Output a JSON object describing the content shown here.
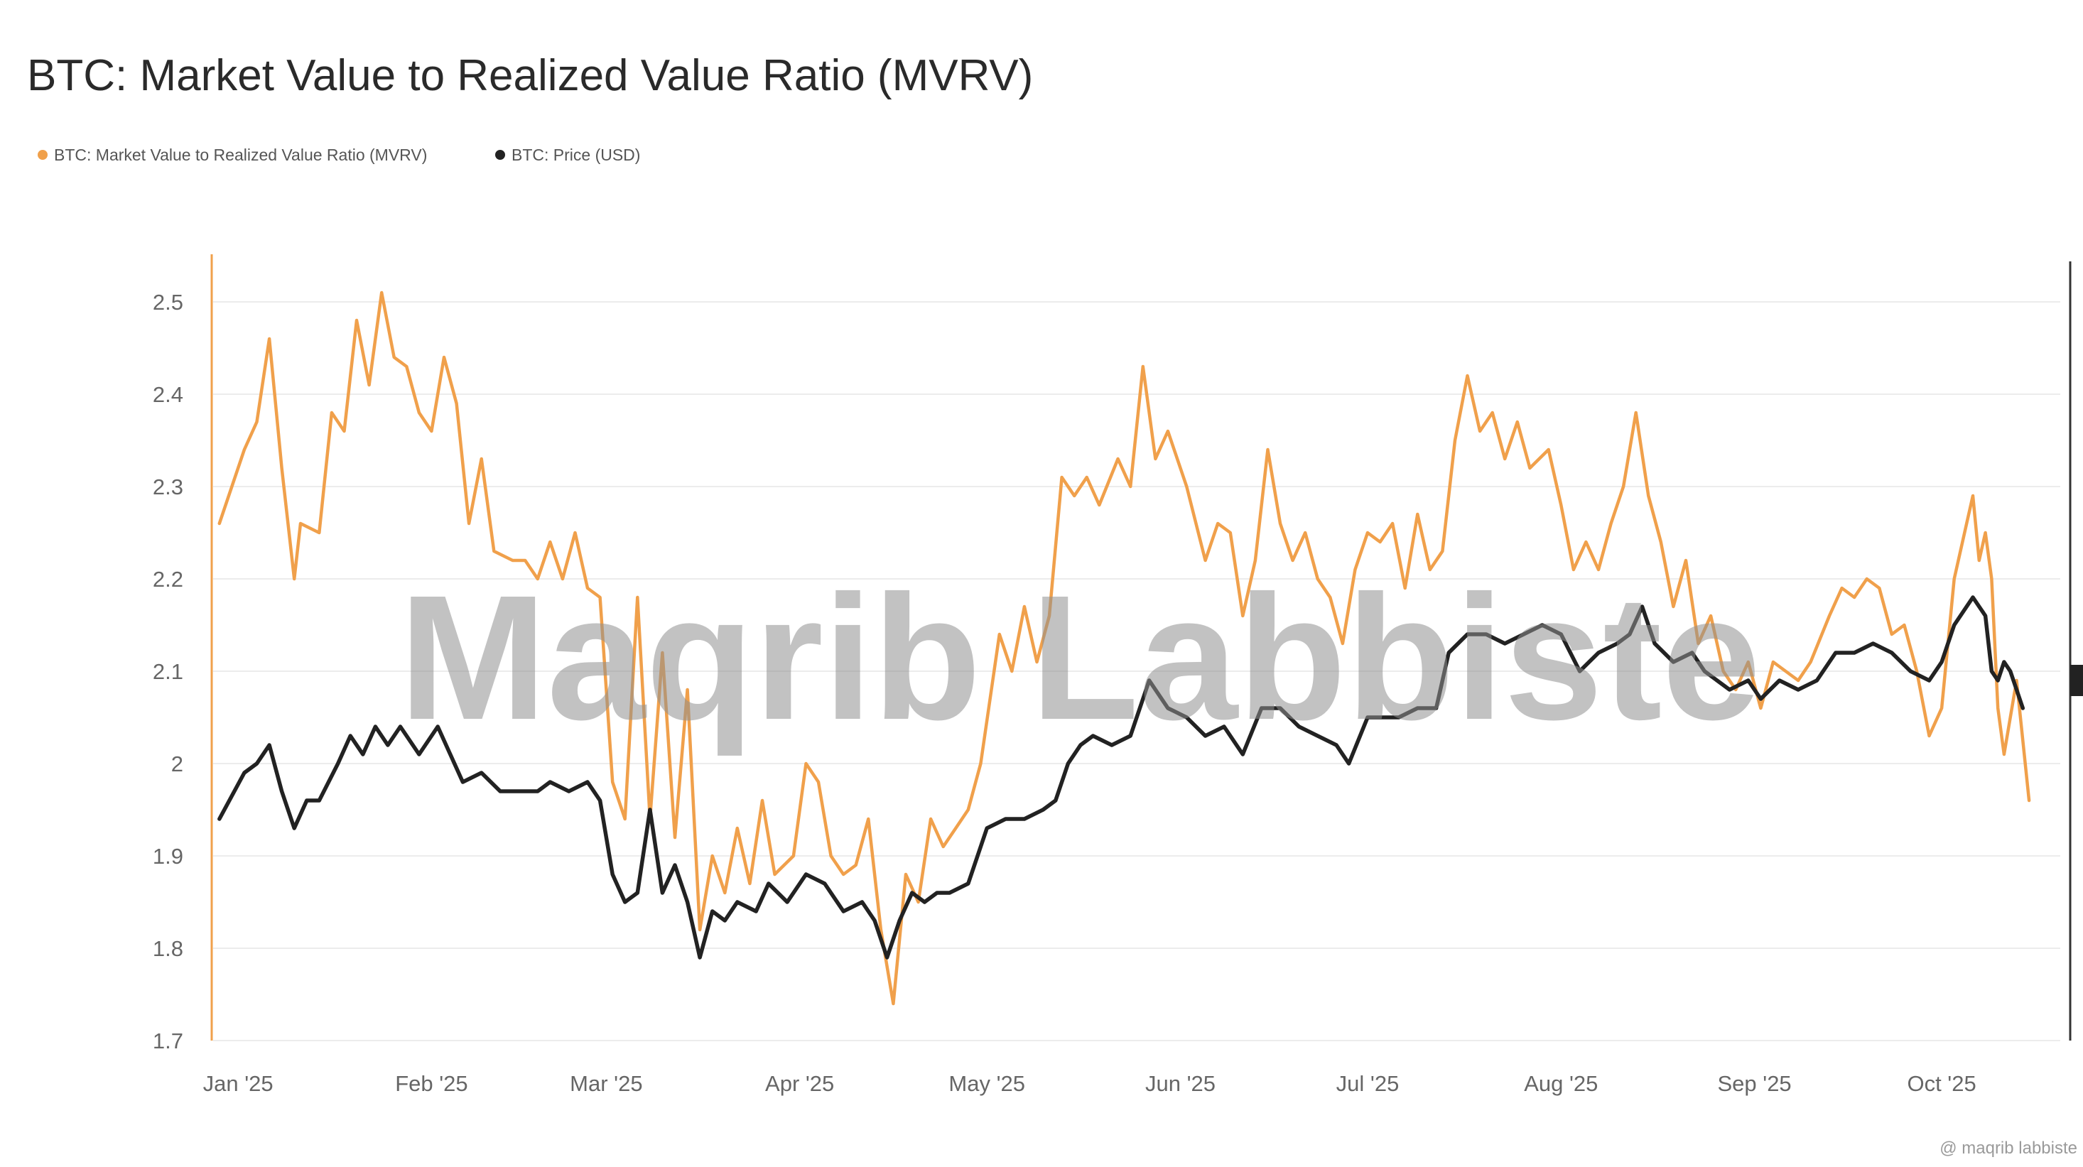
{
  "title": "BTC: Market Value to Realized Value Ratio (MVRV)",
  "watermark": "Maqrib Labbiste",
  "credit": "@ maqrib labbiste",
  "colors": {
    "mvrv": "#f0a04b",
    "price": "#222222",
    "grid": "#ececec"
  },
  "chart_data": {
    "type": "line",
    "title": "BTC: Market Value to Realized Value Ratio (MVRV)",
    "xlabel": "",
    "ylabel": "",
    "ylim": [
      1.7,
      2.55
    ],
    "xlim": [
      "2024-12-28",
      "2025-10-20"
    ],
    "yticks": [
      "2.5",
      "2.4",
      "2.3",
      "2.2",
      "2.1",
      "2",
      "1.9",
      "1.8",
      "1.7"
    ],
    "xticks": [
      {
        "label": "Jan '25",
        "date": "2025-01-01"
      },
      {
        "label": "Feb '25",
        "date": "2025-02-01"
      },
      {
        "label": "Mar '25",
        "date": "2025-03-01"
      },
      {
        "label": "Apr '25",
        "date": "2025-04-01"
      },
      {
        "label": "May '25",
        "date": "2025-05-01"
      },
      {
        "label": "Jun '25",
        "date": "2025-06-01"
      },
      {
        "label": "Jul '25",
        "date": "2025-07-01"
      },
      {
        "label": "Aug '25",
        "date": "2025-08-01"
      },
      {
        "label": "Sep '25",
        "date": "2025-09-01"
      },
      {
        "label": "Oct '25",
        "date": "2025-10-01"
      }
    ],
    "grid": true,
    "legend_position": "top-left",
    "series": [
      {
        "name": "BTC: Market Value to Realized Value Ratio (MVRV)",
        "color": "#f0a04b",
        "points": [
          [
            "2024-12-29",
            2.26
          ],
          [
            "2025-01-02",
            2.34
          ],
          [
            "2025-01-04",
            2.37
          ],
          [
            "2025-01-06",
            2.46
          ],
          [
            "2025-01-08",
            2.32
          ],
          [
            "2025-01-10",
            2.2
          ],
          [
            "2025-01-11",
            2.26
          ],
          [
            "2025-01-14",
            2.25
          ],
          [
            "2025-01-16",
            2.38
          ],
          [
            "2025-01-18",
            2.36
          ],
          [
            "2025-01-20",
            2.48
          ],
          [
            "2025-01-22",
            2.41
          ],
          [
            "2025-01-24",
            2.51
          ],
          [
            "2025-01-26",
            2.44
          ],
          [
            "2025-01-28",
            2.43
          ],
          [
            "2025-01-30",
            2.38
          ],
          [
            "2025-02-01",
            2.36
          ],
          [
            "2025-02-03",
            2.44
          ],
          [
            "2025-02-05",
            2.39
          ],
          [
            "2025-02-07",
            2.26
          ],
          [
            "2025-02-09",
            2.33
          ],
          [
            "2025-02-11",
            2.23
          ],
          [
            "2025-02-14",
            2.22
          ],
          [
            "2025-02-16",
            2.22
          ],
          [
            "2025-02-18",
            2.2
          ],
          [
            "2025-02-20",
            2.24
          ],
          [
            "2025-02-22",
            2.2
          ],
          [
            "2025-02-24",
            2.25
          ],
          [
            "2025-02-26",
            2.19
          ],
          [
            "2025-02-28",
            2.18
          ],
          [
            "2025-03-02",
            1.98
          ],
          [
            "2025-03-04",
            1.94
          ],
          [
            "2025-03-06",
            2.18
          ],
          [
            "2025-03-08",
            1.94
          ],
          [
            "2025-03-10",
            2.12
          ],
          [
            "2025-03-12",
            1.92
          ],
          [
            "2025-03-14",
            2.08
          ],
          [
            "2025-03-16",
            1.82
          ],
          [
            "2025-03-18",
            1.9
          ],
          [
            "2025-03-20",
            1.86
          ],
          [
            "2025-03-22",
            1.93
          ],
          [
            "2025-03-24",
            1.87
          ],
          [
            "2025-03-26",
            1.96
          ],
          [
            "2025-03-28",
            1.88
          ],
          [
            "2025-03-31",
            1.9
          ],
          [
            "2025-04-02",
            2.0
          ],
          [
            "2025-04-04",
            1.98
          ],
          [
            "2025-04-06",
            1.9
          ],
          [
            "2025-04-08",
            1.88
          ],
          [
            "2025-04-10",
            1.89
          ],
          [
            "2025-04-12",
            1.94
          ],
          [
            "2025-04-14",
            1.82
          ],
          [
            "2025-04-16",
            1.74
          ],
          [
            "2025-04-18",
            1.88
          ],
          [
            "2025-04-20",
            1.85
          ],
          [
            "2025-04-22",
            1.94
          ],
          [
            "2025-04-24",
            1.91
          ],
          [
            "2025-04-26",
            1.93
          ],
          [
            "2025-04-28",
            1.95
          ],
          [
            "2025-04-30",
            2.0
          ],
          [
            "2025-05-03",
            2.14
          ],
          [
            "2025-05-05",
            2.1
          ],
          [
            "2025-05-07",
            2.17
          ],
          [
            "2025-05-09",
            2.11
          ],
          [
            "2025-05-11",
            2.16
          ],
          [
            "2025-05-13",
            2.31
          ],
          [
            "2025-05-15",
            2.29
          ],
          [
            "2025-05-17",
            2.31
          ],
          [
            "2025-05-19",
            2.28
          ],
          [
            "2025-05-22",
            2.33
          ],
          [
            "2025-05-24",
            2.3
          ],
          [
            "2025-05-26",
            2.43
          ],
          [
            "2025-05-28",
            2.33
          ],
          [
            "2025-05-30",
            2.36
          ],
          [
            "2025-06-02",
            2.3
          ],
          [
            "2025-06-05",
            2.22
          ],
          [
            "2025-06-07",
            2.26
          ],
          [
            "2025-06-09",
            2.25
          ],
          [
            "2025-06-11",
            2.16
          ],
          [
            "2025-06-13",
            2.22
          ],
          [
            "2025-06-15",
            2.34
          ],
          [
            "2025-06-17",
            2.26
          ],
          [
            "2025-06-19",
            2.22
          ],
          [
            "2025-06-21",
            2.25
          ],
          [
            "2025-06-23",
            2.2
          ],
          [
            "2025-06-25",
            2.18
          ],
          [
            "2025-06-27",
            2.13
          ],
          [
            "2025-06-29",
            2.21
          ],
          [
            "2025-07-01",
            2.25
          ],
          [
            "2025-07-03",
            2.24
          ],
          [
            "2025-07-05",
            2.26
          ],
          [
            "2025-07-07",
            2.19
          ],
          [
            "2025-07-09",
            2.27
          ],
          [
            "2025-07-11",
            2.21
          ],
          [
            "2025-07-13",
            2.23
          ],
          [
            "2025-07-15",
            2.35
          ],
          [
            "2025-07-17",
            2.42
          ],
          [
            "2025-07-19",
            2.36
          ],
          [
            "2025-07-21",
            2.38
          ],
          [
            "2025-07-23",
            2.33
          ],
          [
            "2025-07-25",
            2.37
          ],
          [
            "2025-07-27",
            2.32
          ],
          [
            "2025-07-30",
            2.34
          ],
          [
            "2025-08-01",
            2.28
          ],
          [
            "2025-08-03",
            2.21
          ],
          [
            "2025-08-05",
            2.24
          ],
          [
            "2025-08-07",
            2.21
          ],
          [
            "2025-08-09",
            2.26
          ],
          [
            "2025-08-11",
            2.3
          ],
          [
            "2025-08-13",
            2.38
          ],
          [
            "2025-08-15",
            2.29
          ],
          [
            "2025-08-17",
            2.24
          ],
          [
            "2025-08-19",
            2.17
          ],
          [
            "2025-08-21",
            2.22
          ],
          [
            "2025-08-23",
            2.13
          ],
          [
            "2025-08-25",
            2.16
          ],
          [
            "2025-08-27",
            2.1
          ],
          [
            "2025-08-29",
            2.08
          ],
          [
            "2025-08-31",
            2.11
          ],
          [
            "2025-09-02",
            2.06
          ],
          [
            "2025-09-04",
            2.11
          ],
          [
            "2025-09-06",
            2.1
          ],
          [
            "2025-09-08",
            2.09
          ],
          [
            "2025-09-10",
            2.11
          ],
          [
            "2025-09-13",
            2.16
          ],
          [
            "2025-09-15",
            2.19
          ],
          [
            "2025-09-17",
            2.18
          ],
          [
            "2025-09-19",
            2.2
          ],
          [
            "2025-09-21",
            2.19
          ],
          [
            "2025-09-23",
            2.14
          ],
          [
            "2025-09-25",
            2.15
          ],
          [
            "2025-09-27",
            2.1
          ],
          [
            "2025-09-29",
            2.03
          ],
          [
            "2025-10-01",
            2.06
          ],
          [
            "2025-10-03",
            2.2
          ],
          [
            "2025-10-05",
            2.26
          ],
          [
            "2025-10-06",
            2.29
          ],
          [
            "2025-10-07",
            2.22
          ],
          [
            "2025-10-08",
            2.25
          ],
          [
            "2025-10-09",
            2.2
          ],
          [
            "2025-10-10",
            2.06
          ],
          [
            "2025-10-11",
            2.01
          ],
          [
            "2025-10-13",
            2.09
          ],
          [
            "2025-10-15",
            1.96
          ]
        ]
      },
      {
        "name": "BTC: Price (USD)",
        "color": "#222222",
        "points": [
          [
            "2024-12-29",
            1.94
          ],
          [
            "2025-01-02",
            1.99
          ],
          [
            "2025-01-04",
            2.0
          ],
          [
            "2025-01-06",
            2.02
          ],
          [
            "2025-01-08",
            1.97
          ],
          [
            "2025-01-10",
            1.93
          ],
          [
            "2025-01-12",
            1.96
          ],
          [
            "2025-01-14",
            1.96
          ],
          [
            "2025-01-17",
            2.0
          ],
          [
            "2025-01-19",
            2.03
          ],
          [
            "2025-01-21",
            2.01
          ],
          [
            "2025-01-23",
            2.04
          ],
          [
            "2025-01-25",
            2.02
          ],
          [
            "2025-01-27",
            2.04
          ],
          [
            "2025-01-30",
            2.01
          ],
          [
            "2025-02-02",
            2.04
          ],
          [
            "2025-02-04",
            2.01
          ],
          [
            "2025-02-06",
            1.98
          ],
          [
            "2025-02-09",
            1.99
          ],
          [
            "2025-02-12",
            1.97
          ],
          [
            "2025-02-15",
            1.97
          ],
          [
            "2025-02-18",
            1.97
          ],
          [
            "2025-02-20",
            1.98
          ],
          [
            "2025-02-23",
            1.97
          ],
          [
            "2025-02-26",
            1.98
          ],
          [
            "2025-02-28",
            1.96
          ],
          [
            "2025-03-02",
            1.88
          ],
          [
            "2025-03-04",
            1.85
          ],
          [
            "2025-03-06",
            1.86
          ],
          [
            "2025-03-08",
            1.95
          ],
          [
            "2025-03-10",
            1.86
          ],
          [
            "2025-03-12",
            1.89
          ],
          [
            "2025-03-14",
            1.85
          ],
          [
            "2025-03-16",
            1.79
          ],
          [
            "2025-03-18",
            1.84
          ],
          [
            "2025-03-20",
            1.83
          ],
          [
            "2025-03-22",
            1.85
          ],
          [
            "2025-03-25",
            1.84
          ],
          [
            "2025-03-27",
            1.87
          ],
          [
            "2025-03-30",
            1.85
          ],
          [
            "2025-04-02",
            1.88
          ],
          [
            "2025-04-05",
            1.87
          ],
          [
            "2025-04-08",
            1.84
          ],
          [
            "2025-04-11",
            1.85
          ],
          [
            "2025-04-13",
            1.83
          ],
          [
            "2025-04-15",
            1.79
          ],
          [
            "2025-04-17",
            1.83
          ],
          [
            "2025-04-19",
            1.86
          ],
          [
            "2025-04-21",
            1.85
          ],
          [
            "2025-04-23",
            1.86
          ],
          [
            "2025-04-25",
            1.86
          ],
          [
            "2025-04-28",
            1.87
          ],
          [
            "2025-05-01",
            1.93
          ],
          [
            "2025-05-04",
            1.94
          ],
          [
            "2025-05-07",
            1.94
          ],
          [
            "2025-05-10",
            1.95
          ],
          [
            "2025-05-12",
            1.96
          ],
          [
            "2025-05-14",
            2.0
          ],
          [
            "2025-05-16",
            2.02
          ],
          [
            "2025-05-18",
            2.03
          ],
          [
            "2025-05-21",
            2.02
          ],
          [
            "2025-05-24",
            2.03
          ],
          [
            "2025-05-27",
            2.09
          ],
          [
            "2025-05-30",
            2.06
          ],
          [
            "2025-06-02",
            2.05
          ],
          [
            "2025-06-05",
            2.03
          ],
          [
            "2025-06-08",
            2.04
          ],
          [
            "2025-06-11",
            2.01
          ],
          [
            "2025-06-14",
            2.06
          ],
          [
            "2025-06-17",
            2.06
          ],
          [
            "2025-06-20",
            2.04
          ],
          [
            "2025-06-23",
            2.03
          ],
          [
            "2025-06-26",
            2.02
          ],
          [
            "2025-06-28",
            2.0
          ],
          [
            "2025-07-01",
            2.05
          ],
          [
            "2025-07-03",
            2.05
          ],
          [
            "2025-07-06",
            2.05
          ],
          [
            "2025-07-09",
            2.06
          ],
          [
            "2025-07-12",
            2.06
          ],
          [
            "2025-07-14",
            2.12
          ],
          [
            "2025-07-17",
            2.14
          ],
          [
            "2025-07-20",
            2.14
          ],
          [
            "2025-07-23",
            2.13
          ],
          [
            "2025-07-26",
            2.14
          ],
          [
            "2025-07-29",
            2.15
          ],
          [
            "2025-08-01",
            2.14
          ],
          [
            "2025-08-04",
            2.1
          ],
          [
            "2025-08-07",
            2.12
          ],
          [
            "2025-08-10",
            2.13
          ],
          [
            "2025-08-12",
            2.14
          ],
          [
            "2025-08-14",
            2.17
          ],
          [
            "2025-08-16",
            2.13
          ],
          [
            "2025-08-19",
            2.11
          ],
          [
            "2025-08-22",
            2.12
          ],
          [
            "2025-08-24",
            2.1
          ],
          [
            "2025-08-26",
            2.09
          ],
          [
            "2025-08-28",
            2.08
          ],
          [
            "2025-08-31",
            2.09
          ],
          [
            "2025-09-02",
            2.07
          ],
          [
            "2025-09-05",
            2.09
          ],
          [
            "2025-09-08",
            2.08
          ],
          [
            "2025-09-11",
            2.09
          ],
          [
            "2025-09-14",
            2.12
          ],
          [
            "2025-09-17",
            2.12
          ],
          [
            "2025-09-20",
            2.13
          ],
          [
            "2025-09-23",
            2.12
          ],
          [
            "2025-09-26",
            2.1
          ],
          [
            "2025-09-29",
            2.09
          ],
          [
            "2025-10-01",
            2.11
          ],
          [
            "2025-10-03",
            2.15
          ],
          [
            "2025-10-05",
            2.17
          ],
          [
            "2025-10-06",
            2.18
          ],
          [
            "2025-10-07",
            2.17
          ],
          [
            "2025-10-08",
            2.16
          ],
          [
            "2025-10-09",
            2.1
          ],
          [
            "2025-10-10",
            2.09
          ],
          [
            "2025-10-11",
            2.11
          ],
          [
            "2025-10-12",
            2.1
          ],
          [
            "2025-10-14",
            2.06
          ]
        ]
      }
    ]
  }
}
